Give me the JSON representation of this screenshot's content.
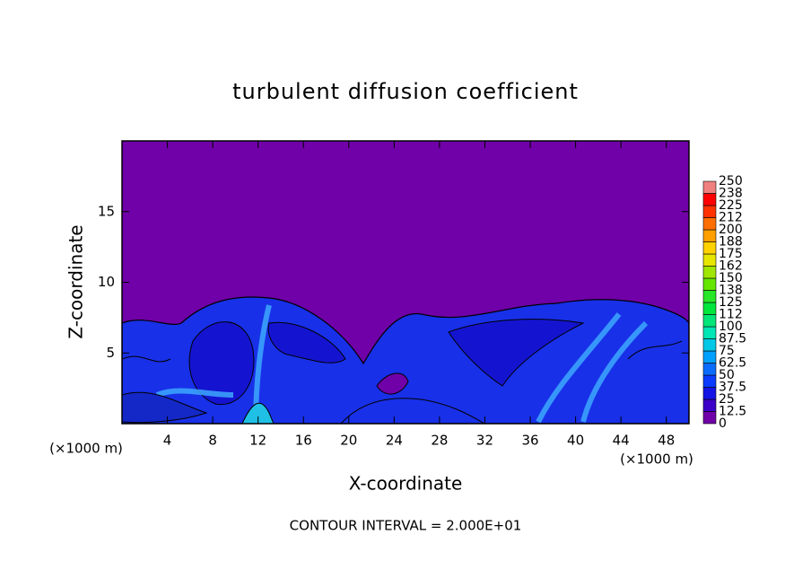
{
  "chart_data": {
    "type": "contour",
    "title": "turbulent diffusion coefficient",
    "xlabel": "X-coordinate",
    "ylabel": "Z-coordinate",
    "x_unit": "(×1000 m)",
    "annotation": "CONTOUR INTERVAL = 2.000E+01",
    "xlim": [
      0,
      50
    ],
    "xticks": [
      4,
      8,
      12,
      16,
      20,
      24,
      28,
      32,
      36,
      40,
      44,
      48
    ],
    "ylim": [
      0,
      20
    ],
    "yticks": [
      5,
      10,
      15
    ],
    "colorbar": {
      "levels": [
        0,
        12.5,
        25,
        37.5,
        50,
        62.5,
        75,
        87.5,
        100,
        {
          "value": 112.5,
          "label": "112"
        },
        125,
        {
          "value": 137.5,
          "label": "138"
        },
        150,
        {
          "value": 162.5,
          "label": "162"
        },
        175,
        {
          "value": 187.5,
          "label": "188"
        },
        200,
        {
          "value": 212.5,
          "label": "212"
        },
        225,
        {
          "value": 237.5,
          "label": "238"
        },
        250
      ],
      "colors": [
        "#7000a8",
        "#3c00c8",
        "#1414e6",
        "#0a3cff",
        "#0a6cff",
        "#00a0ff",
        "#00c8e6",
        "#00e6b4",
        "#00e678",
        "#00e63c",
        "#28e628",
        "#64e600",
        "#a0e600",
        "#e6e600",
        "#ffd200",
        "#ffa000",
        "#ff6e00",
        "#ff3200",
        "#ff0000",
        "#f08080"
      ]
    }
  }
}
